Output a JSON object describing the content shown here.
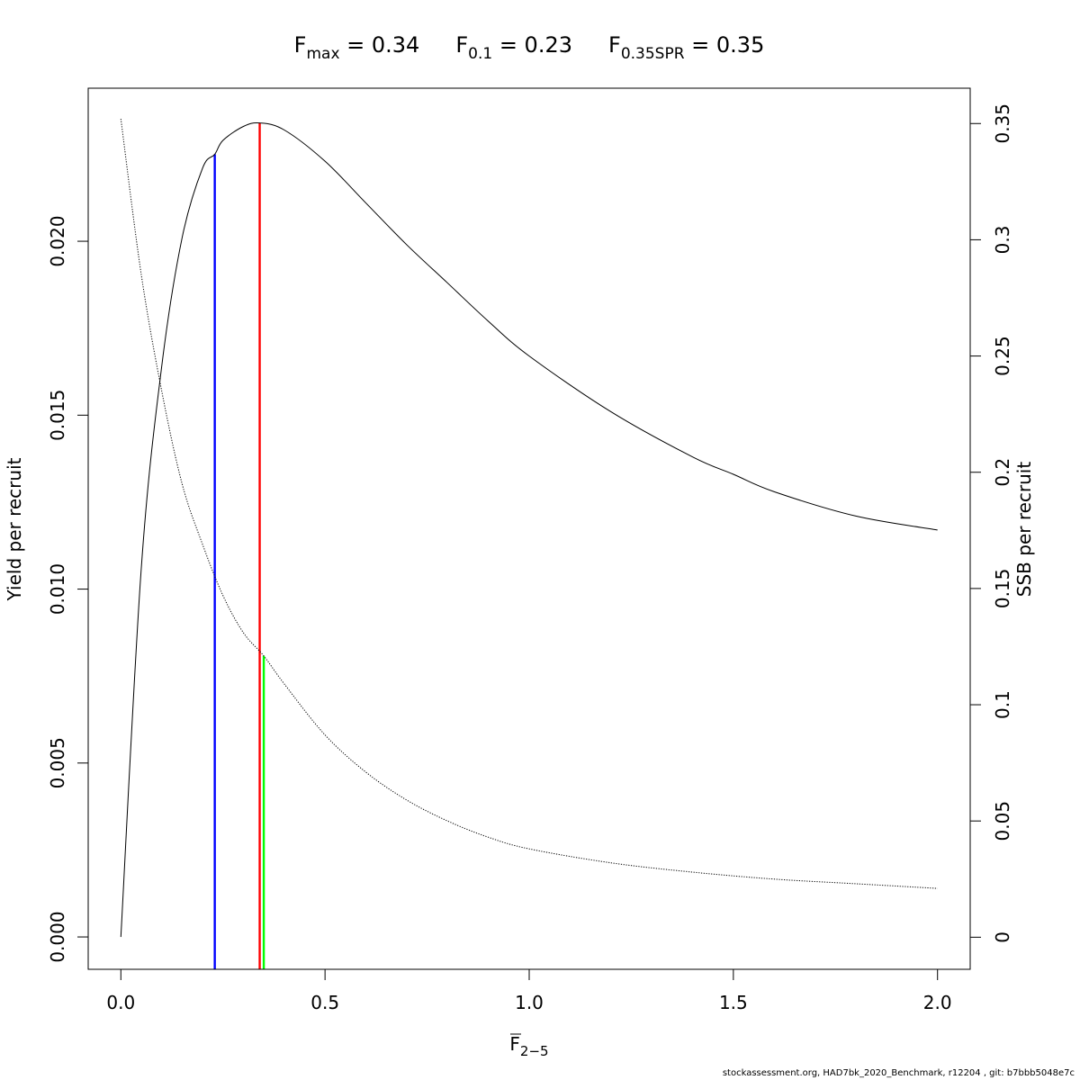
{
  "chart_data": {
    "type": "line",
    "title_parts": {
      "fmax": {
        "sym": "F",
        "sub": "max",
        "text": " = 0.34"
      },
      "f01": {
        "sym": "F",
        "sub": "0.1",
        "text": " = 0.23"
      },
      "fspr": {
        "sym": "F",
        "sub": "0.35SPR",
        "text": " = 0.35"
      }
    },
    "xlabel": {
      "sym": "F",
      "sub": "2−5"
    },
    "ylabel_left": "Yield per recruit",
    "ylabel_right": "SSB per recruit",
    "xlim": [
      -0.08,
      2.08
    ],
    "ylim_left": [
      -0.00093,
      0.0244
    ],
    "ylim_right": [
      -0.0138,
      0.3652
    ],
    "x_ticks": [
      0,
      0.5,
      1,
      1.5,
      2
    ],
    "x_tick_labels": [
      "0.0",
      "0.5",
      "1.0",
      "1.5",
      "2.0"
    ],
    "y_left_ticks": [
      0,
      0.005,
      0.01,
      0.015,
      0.02
    ],
    "y_left_tick_labels": [
      "0.000",
      "0.005",
      "0.010",
      "0.015",
      "0.020"
    ],
    "y_right_ticks": [
      0,
      0.05,
      0.1,
      0.15,
      0.2,
      0.25,
      0.3,
      0.35
    ],
    "y_right_tick_labels": [
      "0",
      "0.05",
      "0.1",
      "0.15",
      "0.2",
      "0.25",
      "0.3",
      "0.35"
    ],
    "grid": false,
    "series": [
      {
        "axis": "left",
        "style": "solid",
        "color": "#000000",
        "x": [
          0,
          0.05,
          0.1,
          0.15,
          0.2,
          0.23,
          0.25,
          0.3,
          0.34,
          0.4,
          0.5,
          0.6,
          0.7,
          0.8,
          0.9,
          1.0,
          1.2,
          1.4,
          1.5,
          1.6,
          1.8,
          2.0
        ],
        "y": [
          0,
          0.0106,
          0.0164,
          0.0201,
          0.0221,
          0.0225,
          0.0229,
          0.0233,
          0.0234,
          0.0232,
          0.0223,
          0.0211,
          0.0199,
          0.0188,
          0.0177,
          0.0167,
          0.0151,
          0.0138,
          0.0133,
          0.0128,
          0.0121,
          0.0117
        ]
      },
      {
        "axis": "right",
        "style": "dotted",
        "color": "#000000",
        "x": [
          0,
          0.05,
          0.1,
          0.15,
          0.2,
          0.25,
          0.3,
          0.35,
          0.4,
          0.5,
          0.6,
          0.7,
          0.8,
          0.9,
          1.0,
          1.2,
          1.4,
          1.6,
          1.8,
          2.0
        ],
        "y": [
          0.352,
          0.285,
          0.235,
          0.195,
          0.169,
          0.147,
          0.131,
          0.121,
          0.109,
          0.087,
          0.071,
          0.059,
          0.05,
          0.043,
          0.038,
          0.032,
          0.028,
          0.025,
          0.023,
          0.021
        ]
      }
    ],
    "reference_lines": [
      {
        "name": "F0.1",
        "x": 0.23,
        "axis": "left",
        "y_top": 0.0225,
        "color": "#0000ff"
      },
      {
        "name": "Fmax",
        "x": 0.34,
        "axis": "left",
        "y_top": 0.0234,
        "color": "#ff0000"
      },
      {
        "name": "F0.35SPR",
        "x": 0.35,
        "axis": "right",
        "y_top": 0.121,
        "color": "#00ff00"
      }
    ]
  },
  "footer": "stockassessment.org, HAD7bk_2020_Benchmark, r12204 , git: b7bbb5048e7c"
}
